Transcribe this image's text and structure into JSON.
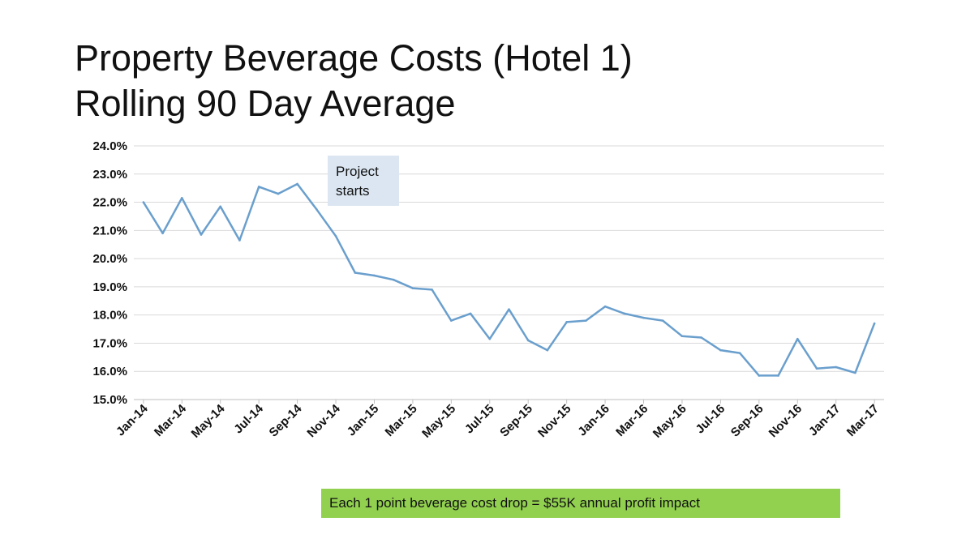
{
  "title": {
    "line1": "Property Beverage Costs (Hotel 1)",
    "line2": "Rolling 90 Day Average"
  },
  "annotation": "Project\nstarts",
  "note": "Each 1 point beverage cost drop = $55K annual profit impact",
  "colors": {
    "line": "#6a9fcd",
    "grid": "#d9d9d9",
    "annotation_bg": "#dbe6f2",
    "note_bg": "#92d050"
  },
  "chart_data": {
    "type": "line",
    "title": "Property Beverage Costs (Hotel 1) Rolling 90 Day Average",
    "xlabel": "",
    "ylabel": "",
    "ylim": [
      15.0,
      24.0
    ],
    "yticks": [
      "15.0%",
      "16.0%",
      "17.0%",
      "18.0%",
      "19.0%",
      "20.0%",
      "21.0%",
      "22.0%",
      "23.0%",
      "24.0%"
    ],
    "xtick_labels": [
      "Jan-14",
      "Mar-14",
      "May-14",
      "Jul-14",
      "Sep-14",
      "Nov-14",
      "Jan-15",
      "Mar-15",
      "May-15",
      "Jul-15",
      "Sep-15",
      "Nov-15",
      "Jan-16",
      "Mar-16",
      "May-16",
      "Jul-16",
      "Sep-16",
      "Nov-16",
      "Jan-17",
      "Mar-17"
    ],
    "grid": true,
    "legend": "none",
    "x": [
      "Jan-14",
      "Feb-14",
      "Mar-14",
      "Apr-14",
      "May-14",
      "Jun-14",
      "Jul-14",
      "Aug-14",
      "Sep-14",
      "Oct-14",
      "Nov-14",
      "Dec-14",
      "Jan-15",
      "Feb-15",
      "Mar-15",
      "Apr-15",
      "May-15",
      "Jun-15",
      "Jul-15",
      "Aug-15",
      "Sep-15",
      "Oct-15",
      "Nov-15",
      "Dec-15",
      "Jan-16",
      "Feb-16",
      "Mar-16",
      "Apr-16",
      "May-16",
      "Jun-16",
      "Jul-16",
      "Aug-16",
      "Sep-16",
      "Oct-16",
      "Nov-16",
      "Dec-16",
      "Jan-17",
      "Feb-17",
      "Mar-17"
    ],
    "series": [
      {
        "values": [
          22.0,
          20.9,
          22.15,
          20.85,
          21.85,
          20.65,
          22.55,
          22.3,
          22.65,
          21.75,
          20.8,
          19.5,
          19.4,
          19.25,
          18.95,
          18.9,
          17.8,
          18.05,
          17.15,
          18.2,
          17.1,
          16.75,
          17.75,
          17.8,
          18.3,
          18.05,
          17.9,
          17.8,
          17.25,
          17.2,
          16.75,
          16.65,
          15.85,
          15.85,
          17.15,
          16.1,
          16.15,
          15.95,
          17.7
        ]
      }
    ]
  }
}
